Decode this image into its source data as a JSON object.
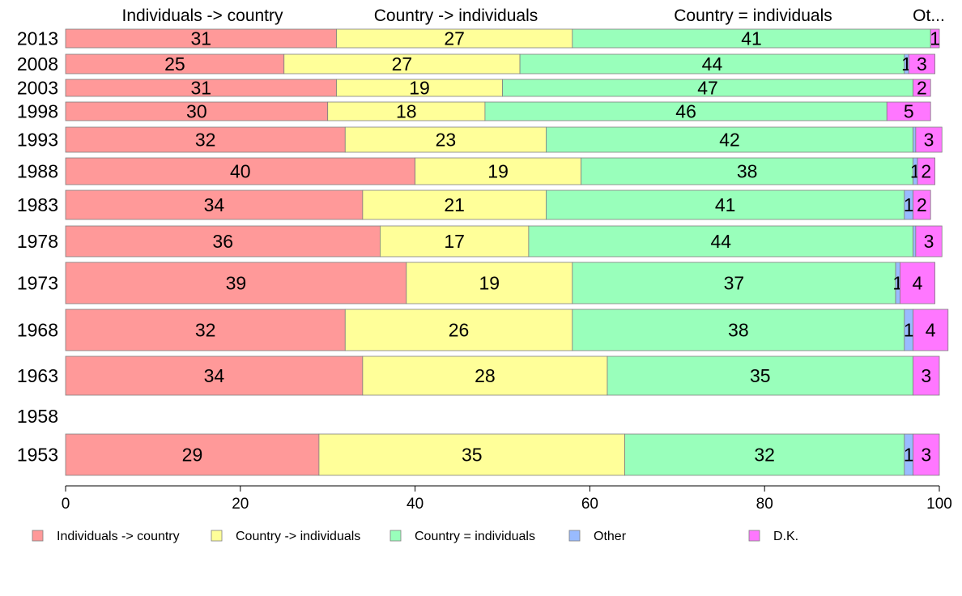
{
  "chart_data": {
    "type": "bar",
    "orientation": "horizontal",
    "stacked": true,
    "categories": [
      "2013",
      "2008",
      "2003",
      "1998",
      "1993",
      "1988",
      "1983",
      "1978",
      "1973",
      "1968",
      "1963",
      "1958",
      "1953"
    ],
    "series": [
      {
        "name": "Individuals -> country",
        "color": "#ff9999",
        "values": [
          31,
          25,
          31,
          30,
          32,
          40,
          34,
          36,
          39,
          32,
          34,
          null,
          29
        ]
      },
      {
        "name": "Country -> individuals",
        "color": "#ffff99",
        "values": [
          27,
          27,
          19,
          18,
          23,
          19,
          21,
          17,
          19,
          26,
          28,
          null,
          35
        ]
      },
      {
        "name": "Country = individuals",
        "color": "#99ffbb",
        "values": [
          41,
          44,
          47,
          46,
          42,
          38,
          41,
          44,
          37,
          38,
          35,
          null,
          32
        ]
      },
      {
        "name": "Other",
        "color": "#99bbff",
        "values": [
          0,
          0.5,
          0,
          0,
          0.3,
          0.5,
          1,
          0.3,
          0.5,
          1,
          0,
          null,
          1
        ]
      },
      {
        "name": "D.K.",
        "color": "#ff77ff",
        "values": [
          1,
          3,
          2,
          5,
          3,
          2,
          2,
          3,
          4,
          4,
          3,
          null,
          3
        ]
      }
    ],
    "segment_labels": [
      [
        "31",
        "27",
        "41",
        "",
        "1"
      ],
      [
        "25",
        "27",
        "44",
        "1",
        "3"
      ],
      [
        "31",
        "19",
        "47",
        "",
        "2"
      ],
      [
        "30",
        "18",
        "46",
        "",
        "5"
      ],
      [
        "32",
        "23",
        "42",
        "",
        "3"
      ],
      [
        "40",
        "19",
        "38",
        "1",
        "2"
      ],
      [
        "34",
        "21",
        "41",
        "1",
        "2"
      ],
      [
        "36",
        "17",
        "44",
        "",
        "3"
      ],
      [
        "39",
        "19",
        "37",
        "1",
        "4"
      ],
      [
        "32",
        "26",
        "38",
        "1",
        "4"
      ],
      [
        "34",
        "28",
        "35",
        "",
        "3"
      ],
      [
        "",
        "",
        "",
        "",
        ""
      ],
      [
        "29",
        "35",
        "32",
        "1",
        "3"
      ]
    ],
    "top_labels": [
      "Individuals -> country",
      "Country -> individuals",
      "Country = individuals",
      "Ot..."
    ],
    "x_ticks": [
      0,
      20,
      40,
      60,
      80,
      100
    ],
    "xlim": [
      0,
      100
    ],
    "legend": {
      "position": "bottom",
      "entries": [
        "Individuals -> country",
        "Country -> individuals",
        "Country = individuals",
        "Other",
        "D.K."
      ]
    },
    "grid": false
  }
}
